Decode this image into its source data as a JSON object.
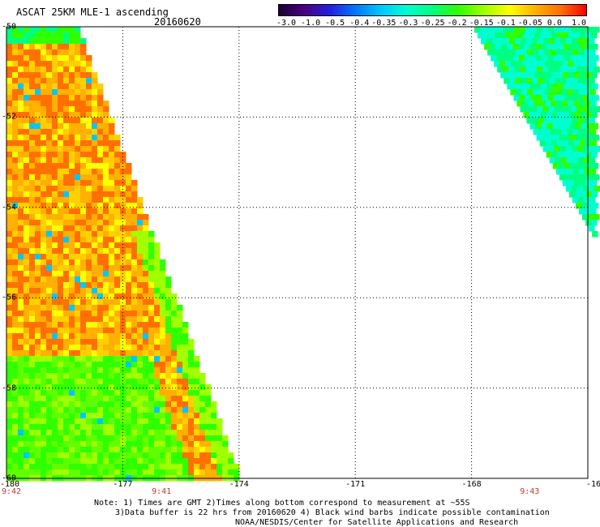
{
  "header": {
    "title": "ASCAT 25KM MLE-1 ascending",
    "date": "20160620"
  },
  "colorbar": {
    "labels": [
      "-3.0",
      "-1.0",
      "-0.5",
      "-0.4",
      "-0.35",
      "-0.3",
      "-0.25",
      "-0.2",
      "-0.15",
      "-0.1",
      "-0.05",
      "0.0",
      "1.0"
    ],
    "colors": [
      "#1a0033",
      "#4b0082",
      "#2020e0",
      "#0078ff",
      "#00c8ff",
      "#00ffd0",
      "#00ff80",
      "#30ff00",
      "#a0ff00",
      "#ffff00",
      "#ffb000",
      "#ff7000",
      "#ff0000"
    ]
  },
  "map": {
    "lon_range": [
      -180,
      -165
    ],
    "lat_range": [
      -60,
      -50
    ],
    "grid_lons": [
      -177,
      -174,
      -171,
      -168
    ],
    "grid_lats": [
      -52,
      -54,
      -56,
      -58
    ],
    "lon_labels": [
      "-180",
      "-177",
      "-174",
      "-171",
      "-168",
      "-16"
    ],
    "lat_labels": [
      "-50",
      "-52",
      "-54",
      "-56",
      "-58",
      "-60"
    ],
    "time_labels": [
      {
        "lon": -180,
        "text": "9:42"
      },
      {
        "lon": -176,
        "text": "9:41"
      },
      {
        "lon": -166.5,
        "text": "9:43"
      }
    ],
    "swaths": [
      {
        "name": "west-swath",
        "lon_min": -180,
        "lon_max": -174.2,
        "value_note": "mostly 0.0 to 1.0 with green -0.15 to -0.1 in south"
      },
      {
        "name": "east-swath",
        "lon_min": -168.5,
        "lon_max": -165,
        "value_note": "mostly -0.2 to -0.25"
      }
    ]
  },
  "notes": {
    "line1": "Note: 1) Times are GMT 2)Times along bottom correspond to measurement at ~55S",
    "line2": "3)Data buffer is 22 hrs from 20160620 4) Black wind barbs indicate possible contamination",
    "line3": "NOAA/NESDIS/Center for Satellite Applications and Research"
  }
}
